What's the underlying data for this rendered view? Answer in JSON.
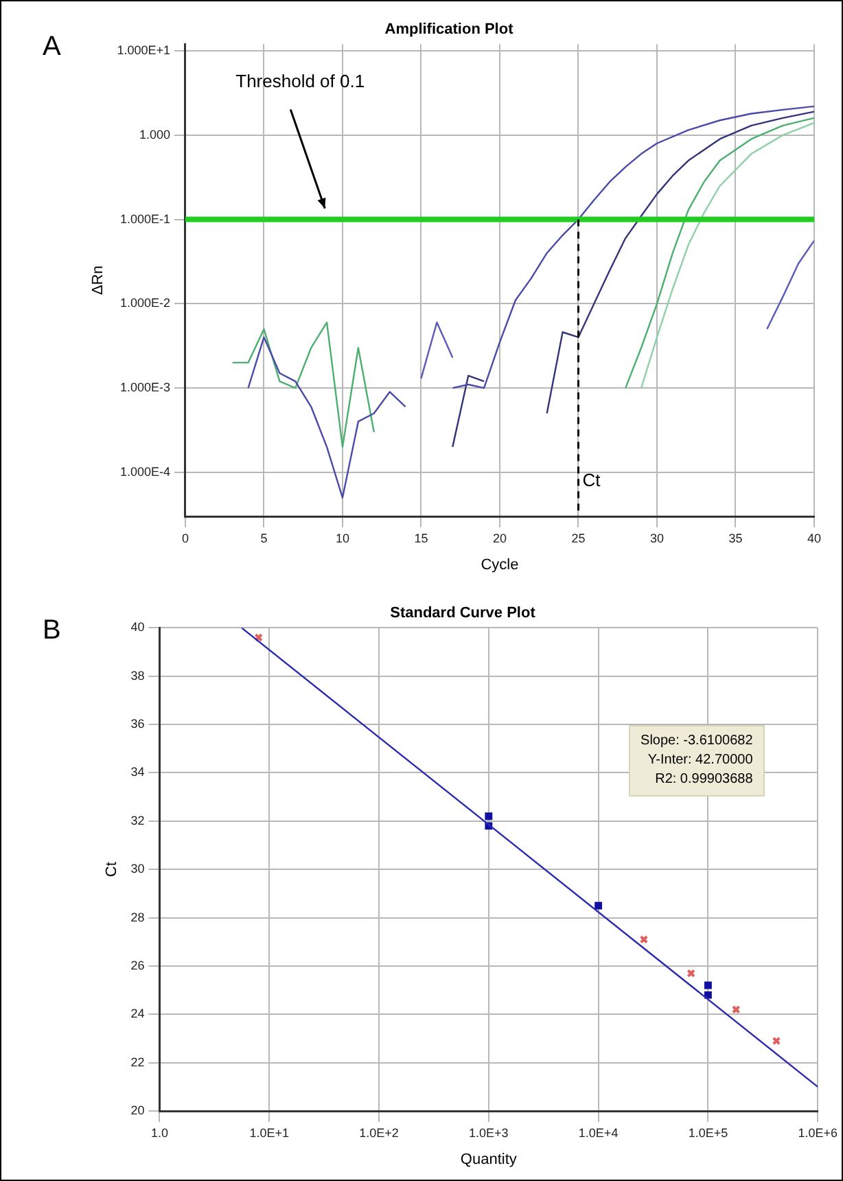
{
  "chart_data": [
    {
      "type": "line",
      "title": "Amplification Plot",
      "xlabel": "Cycle",
      "ylabel": "ΔRn",
      "annotations": [
        "A"
      ],
      "log": "y",
      "xlim": [
        0,
        40
      ],
      "xticks": [
        0,
        5,
        10,
        15,
        20,
        25,
        30,
        35,
        40
      ],
      "ylim": [
        3e-05,
        12
      ],
      "yticks": [
        {
          "value": 10,
          "label": "1.000E+1"
        },
        {
          "value": 1,
          "label": "1.000"
        },
        {
          "value": 0.1,
          "label": "1.000E-1"
        },
        {
          "value": 0.01,
          "label": "1.000E-2"
        },
        {
          "value": 0.001,
          "label": "1.000E-3"
        },
        {
          "value": 0.0001,
          "label": "1.000E-4"
        }
      ],
      "grid": true,
      "legend": false,
      "marker": "none",
      "ref_lines": [
        {
          "axis": "y",
          "value": 0.1,
          "label": "Threshold of 0.1",
          "color": "#22cc22"
        },
        {
          "axis": "x",
          "value": 25,
          "label": "Ct",
          "color": "#000000",
          "line_style": "dashed"
        }
      ],
      "series": [
        {
          "color": "#4a4aa8",
          "x": [
            4,
            5,
            6,
            7,
            8,
            9,
            10,
            11,
            12,
            13,
            14,
            15,
            16,
            17,
            18,
            19,
            20,
            21,
            22,
            23,
            24,
            25,
            26,
            27,
            28,
            29,
            30,
            32,
            34,
            36,
            38,
            40
          ],
          "values": [
            0.001,
            0.004,
            0.0015,
            0.0012,
            0.0006,
            0.0002,
            5e-05,
            0.0004,
            0.0005,
            0.0009,
            0.0006,
            null,
            null,
            0.001,
            0.0011,
            0.001,
            0.0035,
            0.011,
            0.02,
            0.04,
            0.065,
            0.1,
            0.17,
            0.28,
            0.42,
            0.6,
            0.8,
            1.15,
            1.5,
            1.8,
            2.0,
            2.2
          ]
        },
        {
          "color": "#34347a",
          "x": [
            17,
            18,
            19,
            20,
            21,
            22,
            23,
            24,
            25,
            26,
            27,
            28,
            29,
            30,
            31,
            32,
            34,
            36,
            38,
            40
          ],
          "values": [
            0.0002,
            0.0014,
            0.0012,
            null,
            null,
            null,
            0.0005,
            0.0046,
            0.004,
            0.01,
            0.025,
            0.06,
            0.11,
            0.2,
            0.33,
            0.5,
            0.9,
            1.3,
            1.6,
            1.9
          ]
        },
        {
          "color": "#4caf70",
          "x": [
            3,
            4,
            5,
            6,
            7,
            8,
            9,
            10,
            11,
            12,
            13,
            28,
            29,
            30,
            31,
            32,
            33,
            34,
            36,
            38,
            40
          ],
          "values": [
            0.002,
            0.002,
            0.005,
            0.0012,
            0.001,
            0.003,
            0.006,
            0.0002,
            0.003,
            0.0003,
            null,
            0.001,
            0.003,
            0.01,
            0.04,
            0.13,
            0.28,
            0.5,
            0.9,
            1.3,
            1.6
          ]
        },
        {
          "color": "#8fd0a8",
          "x": [
            29,
            30,
            31,
            32,
            33,
            34,
            36,
            38,
            40
          ],
          "values": [
            0.001,
            0.004,
            0.015,
            0.05,
            0.12,
            0.25,
            0.6,
            1.0,
            1.4
          ]
        },
        {
          "color": "#5a5ab8",
          "x": [
            15,
            16,
            17,
            18,
            19,
            36,
            37,
            38,
            39,
            40
          ],
          "values": [
            0.0013,
            0.006,
            0.0023,
            null,
            null,
            null,
            0.005,
            0.012,
            0.03,
            0.056
          ]
        }
      ]
    },
    {
      "type": "scatter",
      "title": "Standard Curve Plot",
      "xlabel": "Quantity",
      "ylabel": "Ct",
      "annotations": [
        "B",
        "Slope: -3.6100682",
        "Y-Inter: 42.70000",
        "R2: 0.99903688"
      ],
      "log": "x",
      "xlim": [
        1,
        1000000
      ],
      "xticks": [
        {
          "value": 1,
          "label": "1.0"
        },
        {
          "value": 10,
          "label": "1.0E+1"
        },
        {
          "value": 100,
          "label": "1.0E+2"
        },
        {
          "value": 1000,
          "label": "1.0E+3"
        },
        {
          "value": 10000,
          "label": "1.0E+4"
        },
        {
          "value": 100000,
          "label": "1.0E+5"
        },
        {
          "value": 1000000,
          "label": "1.0E+6"
        }
      ],
      "ylim": [
        20,
        40
      ],
      "yticks": [
        20,
        22,
        24,
        26,
        28,
        30,
        32,
        34,
        36,
        38,
        40
      ],
      "grid": true,
      "legend": false,
      "series": [
        {
          "type": "line",
          "color": "#2a2ab0",
          "marker": "none",
          "x": [
            5.6,
            1000000
          ],
          "values": [
            40,
            21.0
          ]
        },
        {
          "color": "#e06060",
          "marker": "cross",
          "x": [
            8,
            26000,
            70000,
            180000,
            420000
          ],
          "values": [
            39.6,
            27.1,
            25.7,
            24.2,
            22.9
          ]
        },
        {
          "color": "#1010a0",
          "marker": "square",
          "x": [
            1000,
            1000,
            10000,
            100000,
            100000
          ],
          "values": [
            32.2,
            31.8,
            28.5,
            25.2,
            24.8
          ]
        }
      ]
    }
  ]
}
